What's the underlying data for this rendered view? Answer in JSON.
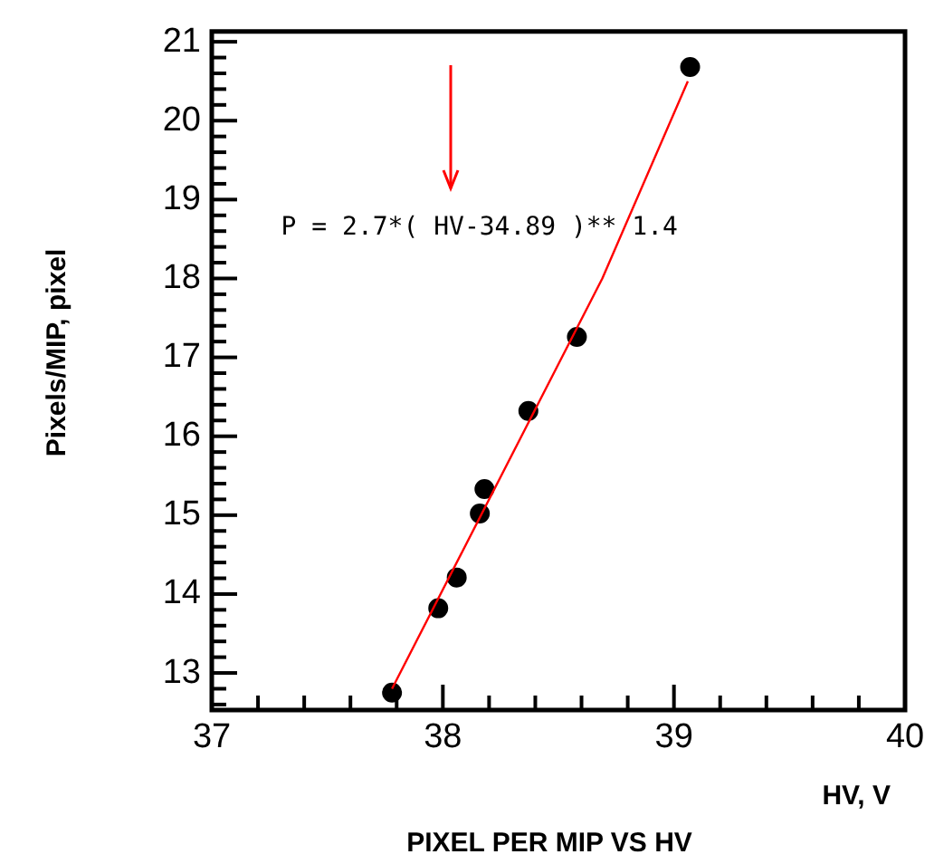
{
  "chart_data": {
    "type": "scatter",
    "title": "PIXEL PER MIP VS HV",
    "xlabel": "HV, V",
    "ylabel": "Pixels/MIP, pixel",
    "marker": "circle",
    "grid": false,
    "legend": false,
    "annotations": [
      "P = 2.7*( HV-34.89 )** 1.4"
    ],
    "xlim": [
      37,
      40
    ],
    "ylim": [
      12.53,
      21.13
    ],
    "xticks": [
      37,
      {
        "value": 37.2,
        "label": null
      },
      {
        "value": 37.4,
        "label": null
      },
      {
        "value": 37.6,
        "label": null
      },
      {
        "value": 37.8,
        "label": null
      },
      38,
      {
        "value": 38.2,
        "label": null
      },
      {
        "value": 38.4,
        "label": null
      },
      {
        "value": 38.6,
        "label": null
      },
      {
        "value": 38.8,
        "label": null
      },
      39,
      {
        "value": 39.2,
        "label": null
      },
      {
        "value": 39.4,
        "label": null
      },
      {
        "value": 39.6,
        "label": null
      },
      {
        "value": 39.8,
        "label": null
      },
      40
    ],
    "yticks": [
      {
        "value": 12.6,
        "label": null
      },
      {
        "value": 12.8,
        "label": null
      },
      13,
      {
        "value": 13.2,
        "label": null
      },
      {
        "value": 13.4,
        "label": null
      },
      {
        "value": 13.6,
        "label": null
      },
      {
        "value": 13.8,
        "label": null
      },
      14,
      {
        "value": 14.2,
        "label": null
      },
      {
        "value": 14.4,
        "label": null
      },
      {
        "value": 14.6,
        "label": null
      },
      {
        "value": 14.8,
        "label": null
      },
      15,
      {
        "value": 15.2,
        "label": null
      },
      {
        "value": 15.4,
        "label": null
      },
      {
        "value": 15.6,
        "label": null
      },
      {
        "value": 15.8,
        "label": null
      },
      16,
      {
        "value": 16.2,
        "label": null
      },
      {
        "value": 16.4,
        "label": null
      },
      {
        "value": 16.6,
        "label": null
      },
      {
        "value": 16.8,
        "label": null
      },
      17,
      {
        "value": 17.2,
        "label": null
      },
      {
        "value": 17.4,
        "label": null
      },
      {
        "value": 17.6,
        "label": null
      },
      {
        "value": 17.8,
        "label": null
      },
      18,
      {
        "value": 18.2,
        "label": null
      },
      {
        "value": 18.4,
        "label": null
      },
      {
        "value": 18.6,
        "label": null
      },
      {
        "value": 18.8,
        "label": null
      },
      19,
      {
        "value": 19.2,
        "label": null
      },
      {
        "value": 19.4,
        "label": null
      },
      {
        "value": 19.6,
        "label": null
      },
      {
        "value": 19.8,
        "label": null
      },
      20,
      {
        "value": 20.2,
        "label": null
      },
      {
        "value": 20.4,
        "label": null
      },
      {
        "value": 20.6,
        "label": null
      },
      {
        "value": 20.8,
        "label": null
      },
      21
    ],
    "series": [
      {
        "type": "line",
        "marker": "none",
        "color": "#ff0000",
        "x": [
          37.78,
          38.69,
          39.06
        ],
        "values": [
          12.8,
          18.0,
          20.5
        ]
      },
      {
        "color": "#000000",
        "x": [
          37.78,
          37.98,
          38.06,
          38.16,
          38.18,
          38.37,
          38.58,
          39.07
        ],
        "values": [
          12.75,
          13.82,
          14.21,
          15.02,
          15.33,
          16.32,
          17.26,
          20.68
        ]
      }
    ]
  }
}
